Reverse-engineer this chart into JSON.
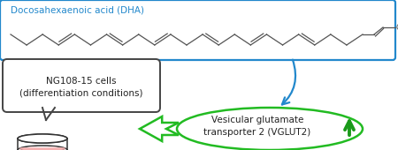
{
  "dha_label": "Docosahexaenoic acid (DHA)",
  "dha_label_color": "#2288cc",
  "dha_box_edgecolor": "#2288cc",
  "cell_box_label": "NG108-15 cells\n(differentiation conditions)",
  "cell_box_color": "#444444",
  "vglut_label": "Vesicular glutamate\ntransporter 2 (VGLUT2)",
  "vglut_ellipse_color": "#22bb22",
  "arrow_up_color": "#1a9a1a",
  "blue_arrow_color": "#2288cc",
  "green_arrow_color": "#22bb22",
  "chain_color": "#555555",
  "bg_color": "#ffffff",
  "fig_w": 4.5,
  "fig_h": 1.7,
  "dpi": 100
}
